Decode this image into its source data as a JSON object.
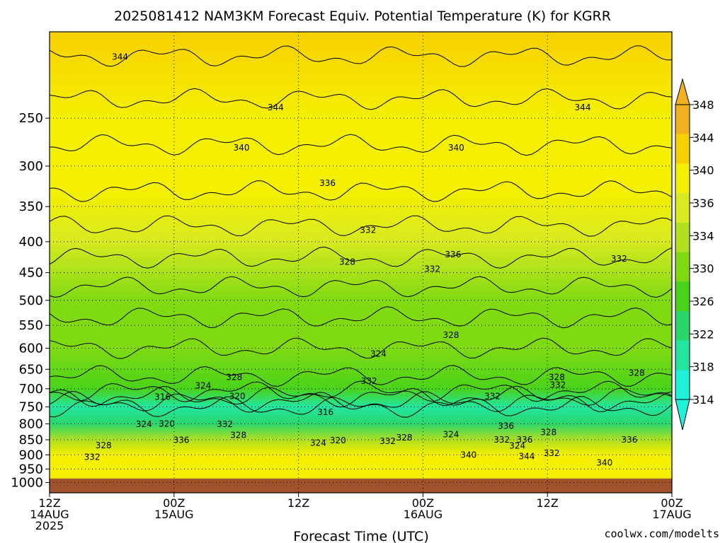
{
  "title": "2025081412 NAM3KM Forecast Equiv. Potential Temperature (K) for KGRR",
  "credit": "coolwx.com/modelts",
  "colors": {
    "credit": "#dd2222",
    "ground": "#a0522d",
    "contour": "#000000",
    "grid": "#000000"
  },
  "chart_data": {
    "type": "heatmap",
    "title": "2025081412 NAM3KM Forecast Equiv. Potential Temperature (K) for KGRR",
    "xlabel": "Forecast Time (UTC)",
    "ylabel": "",
    "x_range_hours": [
      0,
      60
    ],
    "y_range_hpa": [
      1040,
      180
    ],
    "y_scale": "log-pressure",
    "x_ticks": [
      {
        "hour": 0,
        "lines": [
          "12Z",
          "14AUG",
          "2025"
        ]
      },
      {
        "hour": 12,
        "lines": [
          "00Z",
          "15AUG"
        ]
      },
      {
        "hour": 24,
        "lines": [
          "12Z"
        ]
      },
      {
        "hour": 36,
        "lines": [
          "00Z",
          "16AUG"
        ]
      },
      {
        "hour": 48,
        "lines": [
          "12Z"
        ]
      },
      {
        "hour": 60,
        "lines": [
          "00Z",
          "17AUG"
        ]
      }
    ],
    "y_ticks": [
      250,
      300,
      350,
      400,
      450,
      500,
      550,
      600,
      650,
      700,
      750,
      800,
      850,
      900,
      950,
      1000
    ],
    "y_tick_labels": [
      "250",
      "300",
      "350",
      "400",
      "450",
      "500",
      "550",
      "600",
      "650",
      "700",
      "750",
      "800",
      "850",
      "900",
      "950",
      "1000"
    ],
    "grid": true,
    "colorbar": {
      "placement": "right",
      "levels": [
        314,
        318,
        322,
        326,
        330,
        334,
        336,
        340,
        344,
        348
      ],
      "labels": [
        "314",
        "318",
        "322",
        "326",
        "330",
        "334",
        "336",
        "340",
        "344",
        "348"
      ],
      "colors": [
        "#1ff0d8",
        "#22e6a0",
        "#2ad66a",
        "#4ad31a",
        "#7fda12",
        "#b0e020",
        "#d8ea20",
        "#f4f000",
        "#f8d000",
        "#f0b020"
      ]
    },
    "vertical_profile": [
      {
        "p": 180,
        "value": 345
      },
      {
        "p": 250,
        "value": 341
      },
      {
        "p": 330,
        "value": 338
      },
      {
        "p": 400,
        "value": 335
      },
      {
        "p": 500,
        "value": 331
      },
      {
        "p": 600,
        "value": 328
      },
      {
        "p": 700,
        "value": 325
      },
      {
        "p": 750,
        "value": 318
      },
      {
        "p": 800,
        "value": 322
      },
      {
        "p": 850,
        "value": 332
      },
      {
        "p": 900,
        "value": 338
      },
      {
        "p": 1000,
        "value": 341
      }
    ],
    "ground_pressure_hpa": 985,
    "contour_labels": [
      {
        "text": "344",
        "hour": 6.8,
        "p": 198
      },
      {
        "text": "344",
        "hour": 21.8,
        "p": 240
      },
      {
        "text": "344",
        "hour": 51.4,
        "p": 240
      },
      {
        "text": "340",
        "hour": 18.5,
        "p": 280
      },
      {
        "text": "340",
        "hour": 39.2,
        "p": 280
      },
      {
        "text": "336",
        "hour": 26.8,
        "p": 320
      },
      {
        "text": "336",
        "hour": 38.9,
        "p": 420
      },
      {
        "text": "332",
        "hour": 30.7,
        "p": 383
      },
      {
        "text": "332",
        "hour": 36.9,
        "p": 444
      },
      {
        "text": "332",
        "hour": 54.9,
        "p": 427
      },
      {
        "text": "328",
        "hour": 28.7,
        "p": 432
      },
      {
        "text": "328",
        "hour": 38.7,
        "p": 571
      },
      {
        "text": "328",
        "hour": 17.8,
        "p": 670
      },
      {
        "text": "328",
        "hour": 48.9,
        "p": 670
      },
      {
        "text": "328",
        "hour": 56.6,
        "p": 659
      },
      {
        "text": "324",
        "hour": 31.7,
        "p": 613
      },
      {
        "text": "324",
        "hour": 14.8,
        "p": 692
      },
      {
        "text": "332",
        "hour": 30.8,
        "p": 680
      },
      {
        "text": "332",
        "hour": 49.0,
        "p": 690
      },
      {
        "text": "316",
        "hour": 10.9,
        "p": 722
      },
      {
        "text": "320",
        "hour": 18.1,
        "p": 720
      },
      {
        "text": "332",
        "hour": 42.7,
        "p": 720
      },
      {
        "text": "316",
        "hour": 26.6,
        "p": 765
      },
      {
        "text": "324",
        "hour": 9.1,
        "p": 801
      },
      {
        "text": "320",
        "hour": 11.3,
        "p": 800
      },
      {
        "text": "332",
        "hour": 16.9,
        "p": 801
      },
      {
        "text": "328",
        "hour": 18.2,
        "p": 835
      },
      {
        "text": "336",
        "hour": 12.7,
        "p": 851
      },
      {
        "text": "336",
        "hour": 44.0,
        "p": 806
      },
      {
        "text": "328",
        "hour": 48.1,
        "p": 826
      },
      {
        "text": "324",
        "hour": 25.9,
        "p": 860
      },
      {
        "text": "320",
        "hour": 27.8,
        "p": 852
      },
      {
        "text": "332",
        "hour": 32.6,
        "p": 855
      },
      {
        "text": "328",
        "hour": 34.2,
        "p": 843
      },
      {
        "text": "324",
        "hour": 38.7,
        "p": 833
      },
      {
        "text": "332",
        "hour": 43.6,
        "p": 850
      },
      {
        "text": "336",
        "hour": 45.8,
        "p": 850
      },
      {
        "text": "324",
        "hour": 45.1,
        "p": 870
      },
      {
        "text": "332",
        "hour": 48.4,
        "p": 895
      },
      {
        "text": "336",
        "hour": 55.9,
        "p": 850
      },
      {
        "text": "328",
        "hour": 5.2,
        "p": 868
      },
      {
        "text": "332",
        "hour": 4.1,
        "p": 908
      },
      {
        "text": "340",
        "hour": 40.4,
        "p": 900
      },
      {
        "text": "344",
        "hour": 46.0,
        "p": 905
      },
      {
        "text": "340",
        "hour": 53.5,
        "p": 928
      }
    ]
  }
}
